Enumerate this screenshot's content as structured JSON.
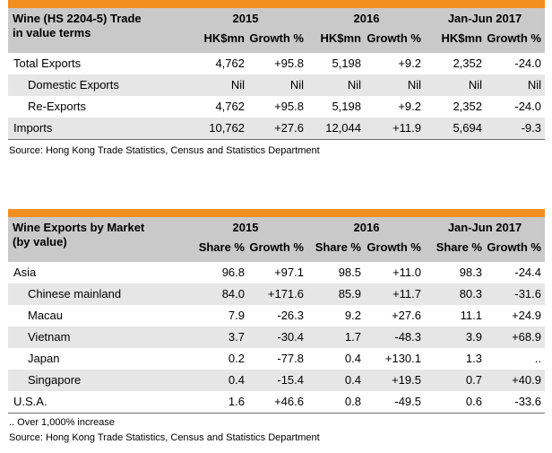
{
  "trade_table": {
    "title": [
      "Wine (HS 2204-5) Trade",
      "in value terms"
    ],
    "periods": [
      "2015",
      "2016",
      "Jan-Jun 2017"
    ],
    "subheaders": [
      "HK$mn",
      "Growth %",
      "HK$mn",
      "Growth %",
      "HK$mn",
      "Growth %"
    ],
    "rows": [
      {
        "label": "Total Exports",
        "indent": 0,
        "values": [
          "4,762",
          "+95.8",
          "5,198",
          "+9.2",
          "2,352",
          "-24.0"
        ]
      },
      {
        "label": "Domestic Exports",
        "indent": 1,
        "values": [
          "Nil",
          "Nil",
          "Nil",
          "Nil",
          "Nil",
          "Nil"
        ]
      },
      {
        "label": "Re-Exports",
        "indent": 1,
        "values": [
          "4,762",
          "+95.8",
          "5,198",
          "+9.2",
          "2,352",
          "-24.0"
        ]
      },
      {
        "label": "Imports",
        "indent": 0,
        "values": [
          "10,762",
          "+27.6",
          "12,044",
          "+11.9",
          "5,694",
          "-9.3"
        ]
      }
    ],
    "source": "Source: Hong Kong Trade Statistics, Census and Statistics Department"
  },
  "market_table": {
    "title": [
      "Wine Exports by Market",
      "(by value)"
    ],
    "periods": [
      "2015",
      "2016",
      "Jan-Jun 2017"
    ],
    "subheaders": [
      "Share %",
      "Growth %",
      "Share %",
      "Growth %",
      "Share %",
      "Growth %"
    ],
    "rows": [
      {
        "label": "Asia",
        "indent": 0,
        "values": [
          "96.8",
          "+97.1",
          "98.5",
          "+11.0",
          "98.3",
          "-24.4"
        ]
      },
      {
        "label": "Chinese mainland",
        "indent": 1,
        "values": [
          "84.0",
          "+171.6",
          "85.9",
          "+11.7",
          "80.3",
          "-31.6"
        ]
      },
      {
        "label": "Macau",
        "indent": 1,
        "values": [
          "7.9",
          "-26.3",
          "9.2",
          "+27.6",
          "11.1",
          "+24.9"
        ]
      },
      {
        "label": "Vietnam",
        "indent": 1,
        "values": [
          "3.7",
          "-30.4",
          "1.7",
          "-48.3",
          "3.9",
          "+68.9"
        ]
      },
      {
        "label": "Japan",
        "indent": 1,
        "values": [
          "0.2",
          "-77.8",
          "0.4",
          "+130.1",
          "1.3",
          ".."
        ]
      },
      {
        "label": "Singapore",
        "indent": 1,
        "values": [
          "0.4",
          "-15.4",
          "0.4",
          "+19.5",
          "0.7",
          "+40.9"
        ]
      },
      {
        "label": "U.S.A.",
        "indent": 0,
        "values": [
          "1.6",
          "+46.6",
          "0.8",
          "-49.5",
          "0.6",
          "-33.6"
        ]
      }
    ],
    "footnote": ".. Over 1,000% increase",
    "source": "Source: Hong Kong Trade Statistics, Census and Statistics Department"
  },
  "colors": {
    "accent": "#f28e1e",
    "header_bg": "#c9c9c9",
    "row_shade": "#e6e6e6"
  }
}
